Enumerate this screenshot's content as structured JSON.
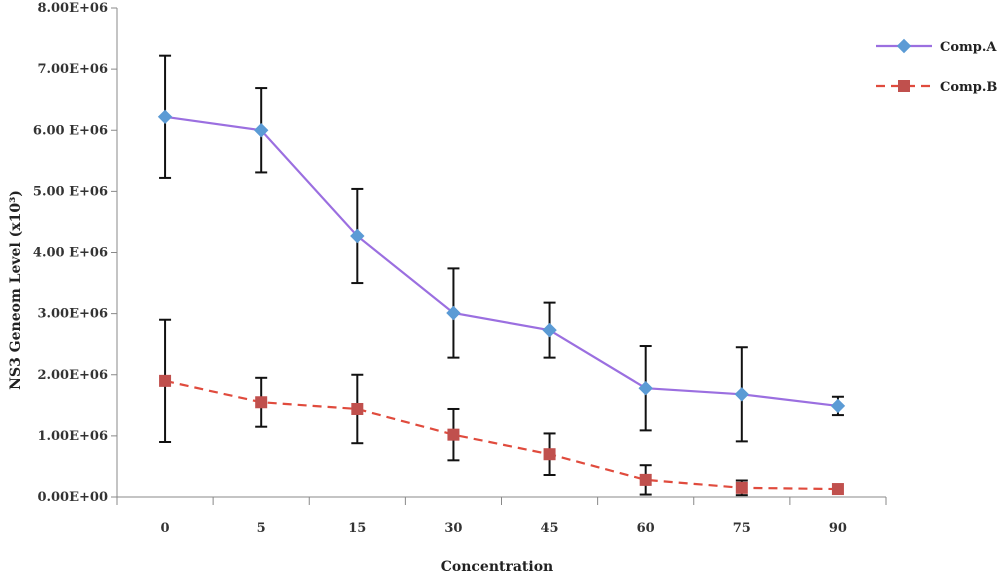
{
  "chart_data": {
    "type": "line",
    "xlabel": "Concentration",
    "ylabel": "NS3 Geneom Level (x10³)",
    "categories": [
      "0",
      "5",
      "15",
      "30",
      "45",
      "60",
      "75",
      "90"
    ],
    "ylim": [
      0,
      8000000
    ],
    "y_ticks": [
      {
        "value": 0,
        "label": "0.00E+00"
      },
      {
        "value": 1000000,
        "label": "1.00E+06"
      },
      {
        "value": 2000000,
        "label": "2.00E+06"
      },
      {
        "value": 3000000,
        "label": "3.00E+06"
      },
      {
        "value": 4000000,
        "label": "4.00 E+06"
      },
      {
        "value": 5000000,
        "label": "5.00 E+06"
      },
      {
        "value": 6000000,
        "label": "6.00 E+06"
      },
      {
        "value": 7000000,
        "label": "7.00E+06"
      },
      {
        "value": 8000000,
        "label": "8.00E+06"
      }
    ],
    "grid": false,
    "legend_position": "top-right",
    "series": [
      {
        "name": "Comp.A",
        "color": "#9b6fe0",
        "marker": "diamond",
        "marker_color": "#5b9bd5",
        "line_style": "solid",
        "values": [
          6220000,
          6000000,
          4270000,
          3010000,
          2730000,
          1780000,
          1680000,
          1490000
        ],
        "errors": [
          1000000,
          690000,
          770000,
          730000,
          450000,
          690000,
          770000,
          150000
        ]
      },
      {
        "name": "Comp.B",
        "color": "#e04b3d",
        "marker": "square",
        "marker_color": "#c0504d",
        "line_style": "dashed",
        "values": [
          1900000,
          1550000,
          1440000,
          1020000,
          700000,
          280000,
          150000,
          130000
        ],
        "errors": [
          1000000,
          400000,
          560000,
          420000,
          340000,
          240000,
          120000,
          0
        ]
      }
    ]
  }
}
